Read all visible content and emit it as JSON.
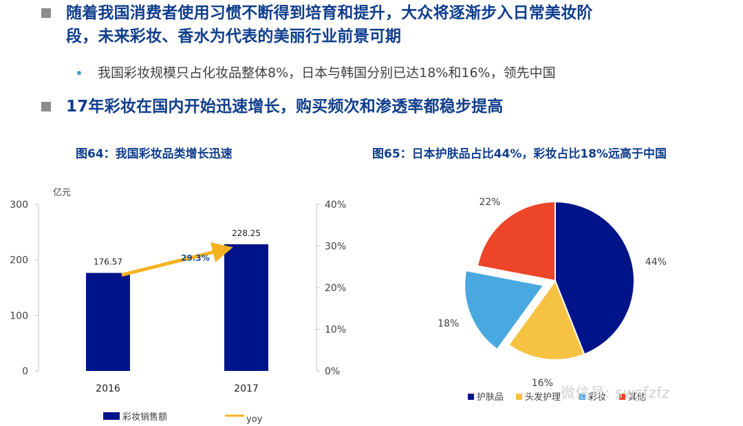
{
  "header": {
    "bullet1_line1": "随着我国消费者使用习惯不断得到培育和提升，大众将逐渐步入日常美妆阶",
    "bullet1_line2": "段，未来彩妆、香水为代表的美丽行业前景可期",
    "sub_bullet": "我国彩妆规模只占化妆品整体8%，日本与韩国分别已达18%和16%，领先中国",
    "bullet2": "17年彩妆在国内开始迅速增长，购买频次和渗透率都稳步提高"
  },
  "watermark": "微信号: swsfzfz",
  "chart_data": [
    {
      "type": "bar",
      "title": "图64：我国彩妆品类增长迅速",
      "unit_label": "亿元",
      "categories": [
        "2016",
        "2017"
      ],
      "series": [
        {
          "name": "彩妆销售额",
          "values": [
            176.57,
            228.25
          ],
          "value_labels": [
            "176.57",
            "228.25"
          ],
          "color": "#001489"
        }
      ],
      "growth_annotation": {
        "name": "yoy",
        "value": "29.3%",
        "color": "#f5b21e"
      },
      "y_left": {
        "ylim": [
          0,
          300
        ],
        "ticks": [
          "0",
          "100",
          "200",
          "300"
        ]
      },
      "y_right": {
        "ylim": [
          0,
          40
        ],
        "ticks": [
          "0%",
          "10%",
          "20%",
          "30%",
          "40%"
        ]
      },
      "legend": [
        "彩妆销售额",
        "yoy"
      ],
      "legend_position": "bottom"
    },
    {
      "type": "pie",
      "title": "图65：日本护肤品占比44%，彩妆占比18%远高于中国",
      "slices": [
        {
          "name": "护肤品",
          "value": 44,
          "label": "44%",
          "color": "#001489"
        },
        {
          "name": "头发护理",
          "value": 16,
          "label": "16%",
          "color": "#f5c242"
        },
        {
          "name": "彩妆",
          "value": 18,
          "label": "18%",
          "color": "#4aa8e0",
          "exploded": true
        },
        {
          "name": "其他",
          "value": 22,
          "label": "22%",
          "color": "#ec4527"
        }
      ],
      "legend_position": "bottom"
    }
  ]
}
